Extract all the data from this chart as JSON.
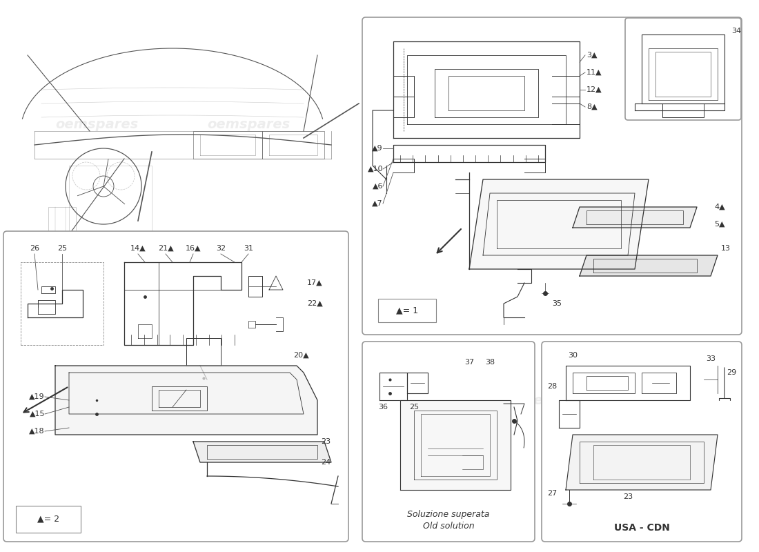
{
  "bg": "#ffffff",
  "line_col": "#333333",
  "box_edge": "#999999",
  "watermark": "oemspares",
  "wm_col": "#dddddd",
  "legend_main": "▲= 2",
  "legend_tr": "▲= 1",
  "old_it": "Soluzione superata",
  "old_en": "Old solution",
  "usa_label": "USA - CDN",
  "fs_num": 8,
  "fs_label": 9,
  "fs_legend": 9,
  "fs_usa": 10
}
